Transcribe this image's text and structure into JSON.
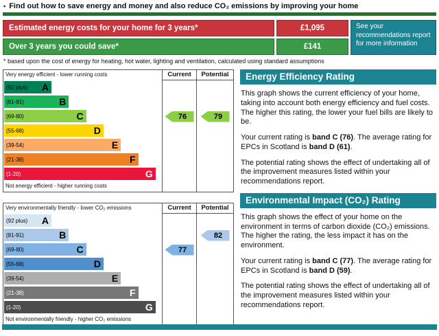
{
  "palette": {
    "table_red": "#c9353c",
    "table_green": "#3a9a48",
    "teal_heading": "#1c8392",
    "divider_green": "#2e6b33"
  },
  "header": {
    "bullet": "▪",
    "title": "Find out how to save energy and money and also reduce CO₂ emissions by improving your home"
  },
  "costs": {
    "rows": [
      {
        "label": "Estimated energy costs for your home for 3 years*",
        "value": "£1,095"
      },
      {
        "label": "Over 3 years you could save*",
        "value": "£141"
      }
    ],
    "note": "See your recommendations report for more information",
    "footnote": "* based upon the cost of energy for heating, hot water, lighting and ventilation, calculated using standard assumptions"
  },
  "energy": {
    "section_title": "Energy Efficiency Rating",
    "chart": {
      "type": "epc-rating-bands",
      "top_caption": "Very energy efficient - lower running costs",
      "bottom_caption": "Not energy efficient - higher running costs",
      "col_current": "Current",
      "col_potential": "Potential",
      "current": 76,
      "potential": 79,
      "bands": [
        {
          "letter": "A",
          "range": "(92 plus)",
          "min": 92,
          "max": 100,
          "width_pct": 30,
          "color": "#008054",
          "text_color": "#000000"
        },
        {
          "letter": "B",
          "range": "(81-91)",
          "min": 81,
          "max": 91,
          "width_pct": 41,
          "color": "#19b459",
          "text_color": "#000000"
        },
        {
          "letter": "C",
          "range": "(69-80)",
          "min": 69,
          "max": 80,
          "width_pct": 52,
          "color": "#8dce46",
          "text_color": "#000000"
        },
        {
          "letter": "D",
          "range": "(55-68)",
          "min": 55,
          "max": 68,
          "width_pct": 63,
          "color": "#ffd500",
          "text_color": "#000000"
        },
        {
          "letter": "E",
          "range": "(39-54)",
          "min": 39,
          "max": 54,
          "width_pct": 74,
          "color": "#fcaa65",
          "text_color": "#000000"
        },
        {
          "letter": "F",
          "range": "(21-38)",
          "min": 21,
          "max": 38,
          "width_pct": 85,
          "color": "#ef8023",
          "text_color": "#000000"
        },
        {
          "letter": "G",
          "range": "(1-20)",
          "min": 1,
          "max": 20,
          "width_pct": 96,
          "color": "#e9153b",
          "text_color": "#ffffff"
        }
      ]
    },
    "paragraphs": {
      "p1": "This graph shows the current efficiency of your home, taking into account both energy efficiency and fuel costs. The higher this rating, the lower your fuel bills are likely to be.",
      "p2_pre": "Your current rating is ",
      "p2_current": "band C (76)",
      "p2_mid": ". The average rating for EPCs in Scotland is ",
      "p2_average": "band D (61)",
      "p2_post": ".",
      "p3": "The potential rating shows the effect of undertaking all of the improvement measures listed within your recommendations report."
    }
  },
  "environment": {
    "section_title": "Environmental Impact (CO₂) Rating",
    "chart": {
      "type": "epc-rating-bands",
      "top_caption": "Very environmentally friendly - lower CO₂ emissions",
      "bottom_caption": "Not environmentally friendly - higher CO₂ emissions",
      "col_current": "Current",
      "col_potential": "Potential",
      "current": 77,
      "potential": 82,
      "bands": [
        {
          "letter": "A",
          "range": "(92 plus)",
          "min": 92,
          "max": 100,
          "width_pct": 30,
          "color": "#d5e5f1",
          "text_color": "#000000"
        },
        {
          "letter": "B",
          "range": "(81-91)",
          "min": 81,
          "max": 91,
          "width_pct": 41,
          "color": "#abc8e9",
          "text_color": "#000000"
        },
        {
          "letter": "C",
          "range": "(69-80)",
          "min": 69,
          "max": 80,
          "width_pct": 52,
          "color": "#7fb2e3",
          "text_color": "#000000"
        },
        {
          "letter": "D",
          "range": "(55-68)",
          "min": 55,
          "max": 68,
          "width_pct": 63,
          "color": "#4f8fcc",
          "text_color": "#000000"
        },
        {
          "letter": "E",
          "range": "(39-54)",
          "min": 39,
          "max": 54,
          "width_pct": 74,
          "color": "#aeaeae",
          "text_color": "#000000"
        },
        {
          "letter": "F",
          "range": "(21-38)",
          "min": 21,
          "max": 38,
          "width_pct": 85,
          "color": "#777777",
          "text_color": "#ffffff"
        },
        {
          "letter": "G",
          "range": "(1-20)",
          "min": 1,
          "max": 20,
          "width_pct": 96,
          "color": "#4c4c4c",
          "text_color": "#ffffff"
        }
      ]
    },
    "paragraphs": {
      "p1": "This graph shows the effect of your home on the environment in terms of carbon dioxide (CO₂) emissions. The higher the rating, the less impact it has on the environment.",
      "p2_pre": "Your current rating is ",
      "p2_current": "band C (77)",
      "p2_mid": ". The average rating for EPCs in Scotland is ",
      "p2_average": "band D (59)",
      "p2_post": ".",
      "p3": "The potential rating shows the effect of undertaking all of the improvement measures listed within your recommendations report."
    }
  }
}
